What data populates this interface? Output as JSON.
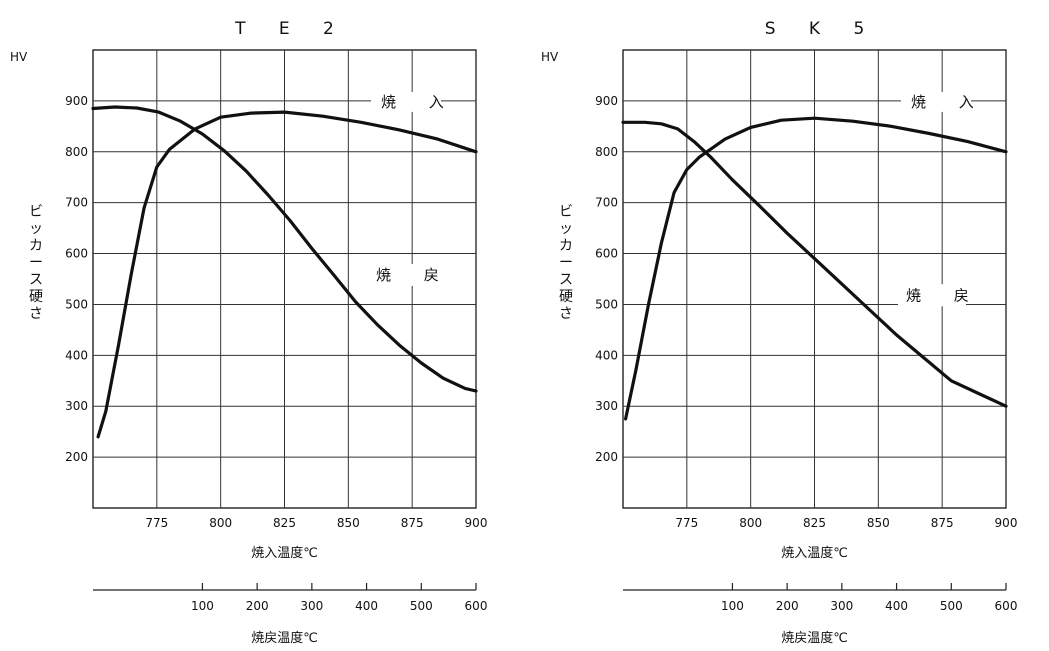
{
  "chart_data": [
    {
      "type": "line",
      "title": "T E  2",
      "yunit": "HV",
      "ylabel": "ビッカース硬さ",
      "xlabel": "焼入温度℃",
      "x2label": "焼戻温度℃",
      "xlim": [
        750,
        900
      ],
      "ylim": [
        100,
        1000
      ],
      "xticks": [
        775,
        800,
        825,
        850,
        875,
        900
      ],
      "yticks": [
        200,
        300,
        400,
        500,
        600,
        700,
        800,
        900
      ],
      "x2lim": [
        -100,
        600
      ],
      "x2ticks": [
        100,
        200,
        300,
        400,
        500,
        600
      ],
      "series": [
        {
          "name": "焼 入",
          "axis": "quench_temperature",
          "x": [
            752,
            755,
            760,
            765,
            770,
            775,
            780,
            790,
            800,
            812,
            825,
            840,
            855,
            870,
            885,
            900
          ],
          "y": [
            240,
            290,
            420,
            560,
            690,
            770,
            805,
            845,
            868,
            876,
            878,
            870,
            858,
            843,
            825,
            800
          ]
        },
        {
          "name": "焼 戻",
          "axis": "temper_temperature",
          "x": [
            -100,
            -60,
            -20,
            20,
            60,
            100,
            140,
            180,
            220,
            260,
            300,
            340,
            380,
            420,
            460,
            500,
            540,
            580,
            600
          ],
          "y": [
            885,
            888,
            886,
            878,
            860,
            835,
            802,
            762,
            715,
            665,
            610,
            558,
            505,
            460,
            420,
            385,
            355,
            335,
            330
          ]
        }
      ]
    },
    {
      "type": "line",
      "title": "S K  5",
      "yunit": "HV",
      "ylabel": "ビッカース硬さ",
      "xlabel": "焼入温度℃",
      "x2label": "焼戻温度℃",
      "xlim": [
        750,
        900
      ],
      "ylim": [
        100,
        1000
      ],
      "xticks": [
        775,
        800,
        825,
        850,
        875,
        900
      ],
      "yticks": [
        200,
        300,
        400,
        500,
        600,
        700,
        800,
        900
      ],
      "x2lim": [
        -100,
        600
      ],
      "x2ticks": [
        100,
        200,
        300,
        400,
        500,
        600
      ],
      "series": [
        {
          "name": "焼 入",
          "axis": "quench_temperature",
          "x": [
            751,
            755,
            760,
            765,
            770,
            775,
            780,
            790,
            800,
            812,
            825,
            840,
            855,
            870,
            885,
            900
          ],
          "y": [
            275,
            370,
            500,
            620,
            720,
            765,
            790,
            825,
            848,
            862,
            866,
            860,
            850,
            836,
            820,
            800
          ]
        },
        {
          "name": "焼 戻",
          "axis": "temper_temperature",
          "x": [
            -100,
            -60,
            -30,
            0,
            30,
            60,
            100,
            150,
            200,
            250,
            300,
            350,
            400,
            450,
            500,
            550,
            600
          ],
          "y": [
            858,
            858,
            855,
            845,
            820,
            790,
            745,
            693,
            640,
            590,
            540,
            490,
            440,
            395,
            350,
            325,
            300
          ]
        }
      ]
    }
  ]
}
